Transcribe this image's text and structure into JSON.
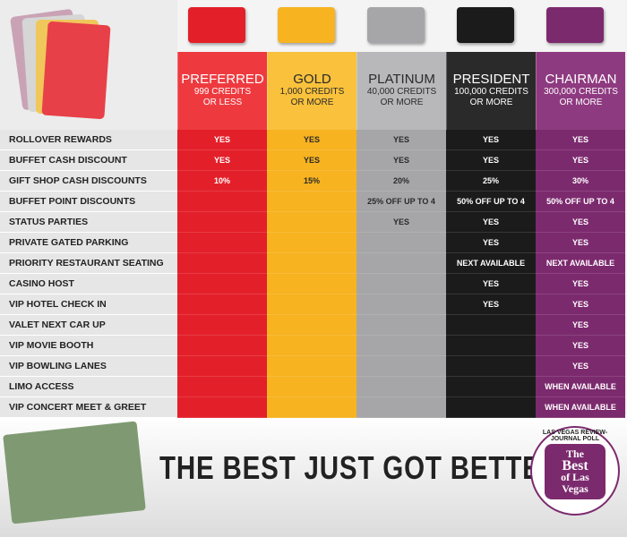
{
  "table": {
    "tiers": [
      {
        "name": "PREFERRED",
        "sub": [
          "999 CREDITS",
          "OR LESS"
        ],
        "color": "#e3202a",
        "header_color": "#ee3a3f",
        "text_color": "#ffffff"
      },
      {
        "name": "GOLD",
        "sub": [
          "1,000 CREDITS",
          "OR MORE"
        ],
        "color": "#f7b320",
        "header_color": "#f9c13c",
        "text_color": "#2a2a2a"
      },
      {
        "name": "PLATINUM",
        "sub": [
          "40,000 CREDITS",
          "OR MORE"
        ],
        "color": "#a6a6a8",
        "header_color": "#b8b8ba",
        "text_color": "#2a2a2a"
      },
      {
        "name": "PRESIDENT",
        "sub": [
          "100,000 CREDITS",
          "OR MORE"
        ],
        "color": "#1b1b1b",
        "header_color": "#2a2a2a",
        "text_color": "#ffffff"
      },
      {
        "name": "CHAIRMAN",
        "sub": [
          "300,000 CREDITS",
          "OR MORE"
        ],
        "color": "#7c2a6e",
        "header_color": "#8e3a80",
        "text_color": "#ffffff"
      }
    ],
    "rows": [
      {
        "feature": "ROLLOVER REWARDS",
        "cells": [
          "YES",
          "YES",
          "YES",
          "YES",
          "YES"
        ]
      },
      {
        "feature": "BUFFET CASH DISCOUNT",
        "cells": [
          "YES",
          "YES",
          "YES",
          "YES",
          "YES"
        ]
      },
      {
        "feature": "GIFT SHOP CASH DISCOUNTS",
        "cells": [
          "10%",
          "15%",
          "20%",
          "25%",
          "30%"
        ]
      },
      {
        "feature": "BUFFET POINT DISCOUNTS",
        "cells": [
          null,
          null,
          "25% OFF UP TO 4",
          "50% OFF UP TO 4",
          "50% OFF UP TO 4"
        ]
      },
      {
        "feature": "STATUS PARTIES",
        "cells": [
          null,
          null,
          "YES",
          "YES",
          "YES"
        ]
      },
      {
        "feature": "PRIVATE GATED PARKING",
        "cells": [
          null,
          null,
          null,
          "YES",
          "YES"
        ]
      },
      {
        "feature": "PRIORITY RESTAURANT SEATING",
        "cells": [
          null,
          null,
          null,
          "NEXT AVAILABLE",
          "NEXT AVAILABLE"
        ]
      },
      {
        "feature": "CASINO HOST",
        "cells": [
          null,
          null,
          null,
          "YES",
          "YES"
        ]
      },
      {
        "feature": "VIP HOTEL CHECK IN",
        "cells": [
          null,
          null,
          null,
          "YES",
          "YES"
        ]
      },
      {
        "feature": "VALET NEXT CAR UP",
        "cells": [
          null,
          null,
          null,
          null,
          "YES"
        ]
      },
      {
        "feature": "VIP MOVIE BOOTH",
        "cells": [
          null,
          null,
          null,
          null,
          "YES"
        ]
      },
      {
        "feature": "VIP BOWLING LANES",
        "cells": [
          null,
          null,
          null,
          null,
          "YES"
        ]
      },
      {
        "feature": "LIMO ACCESS",
        "cells": [
          null,
          null,
          null,
          null,
          "WHEN AVAILABLE"
        ]
      },
      {
        "feature": "VIP CONCERT MEET & GREET",
        "cells": [
          null,
          null,
          null,
          null,
          "WHEN AVAILABLE"
        ]
      }
    ]
  },
  "banner": {
    "slogan": "THE BEST JUST GOT BETTER.",
    "poll": "LAS VEGAS REVIEW-JOURNAL POLL",
    "logo": [
      "The",
      "Best",
      "of Las",
      "Vegas"
    ]
  }
}
